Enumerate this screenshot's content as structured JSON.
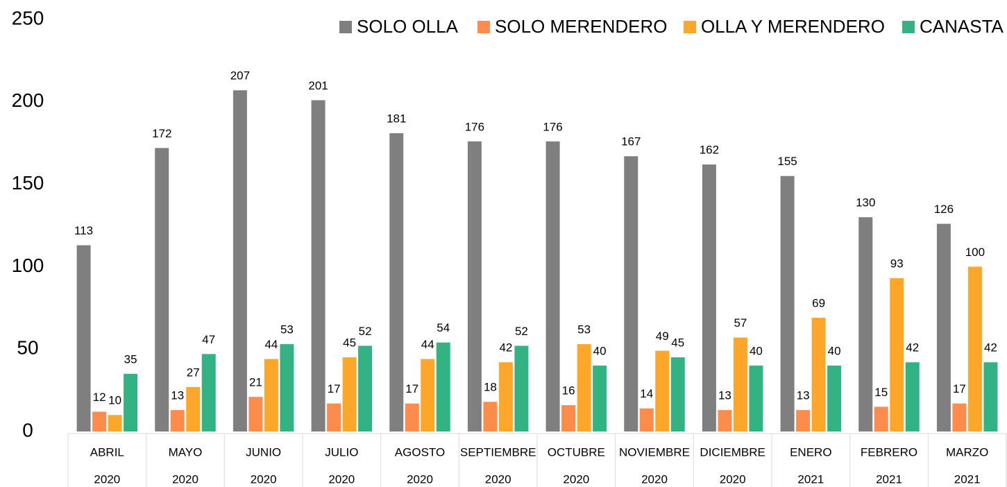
{
  "chart_data": {
    "type": "bar",
    "categories": [
      "ABRIL",
      "MAYO",
      "JUNIO",
      "JULIO",
      "AGOSTO",
      "SEPTIEMBRE",
      "OCTUBRE",
      "NOVIEMBRE",
      "DICIEMBRE",
      "ENERO",
      "FEBRERO",
      "MARZO"
    ],
    "category_years": [
      "2020",
      "2020",
      "2020",
      "2020",
      "2020",
      "2020",
      "2020",
      "2020",
      "2020",
      "2021",
      "2021",
      "2021"
    ],
    "series": [
      {
        "name": "SOLO OLLA",
        "color": "#7f7f7f",
        "values": [
          113,
          172,
          207,
          201,
          181,
          176,
          176,
          167,
          162,
          155,
          130,
          126
        ]
      },
      {
        "name": "SOLO MERENDERO",
        "color": "#fb8c4c",
        "values": [
          12,
          13,
          21,
          17,
          17,
          18,
          16,
          14,
          13,
          13,
          15,
          17
        ]
      },
      {
        "name": "OLLA Y MERENDERO",
        "color": "#fda72a",
        "values": [
          10,
          27,
          44,
          45,
          44,
          42,
          53,
          49,
          57,
          69,
          93,
          100
        ]
      },
      {
        "name": "CANASTA",
        "color": "#33b384",
        "values": [
          35,
          47,
          53,
          52,
          54,
          52,
          40,
          45,
          40,
          40,
          42,
          42
        ]
      }
    ],
    "ylim": [
      0,
      250
    ],
    "yticks": [
      0,
      50,
      100,
      150,
      200,
      250
    ],
    "grid": false,
    "legend": "top-right"
  }
}
